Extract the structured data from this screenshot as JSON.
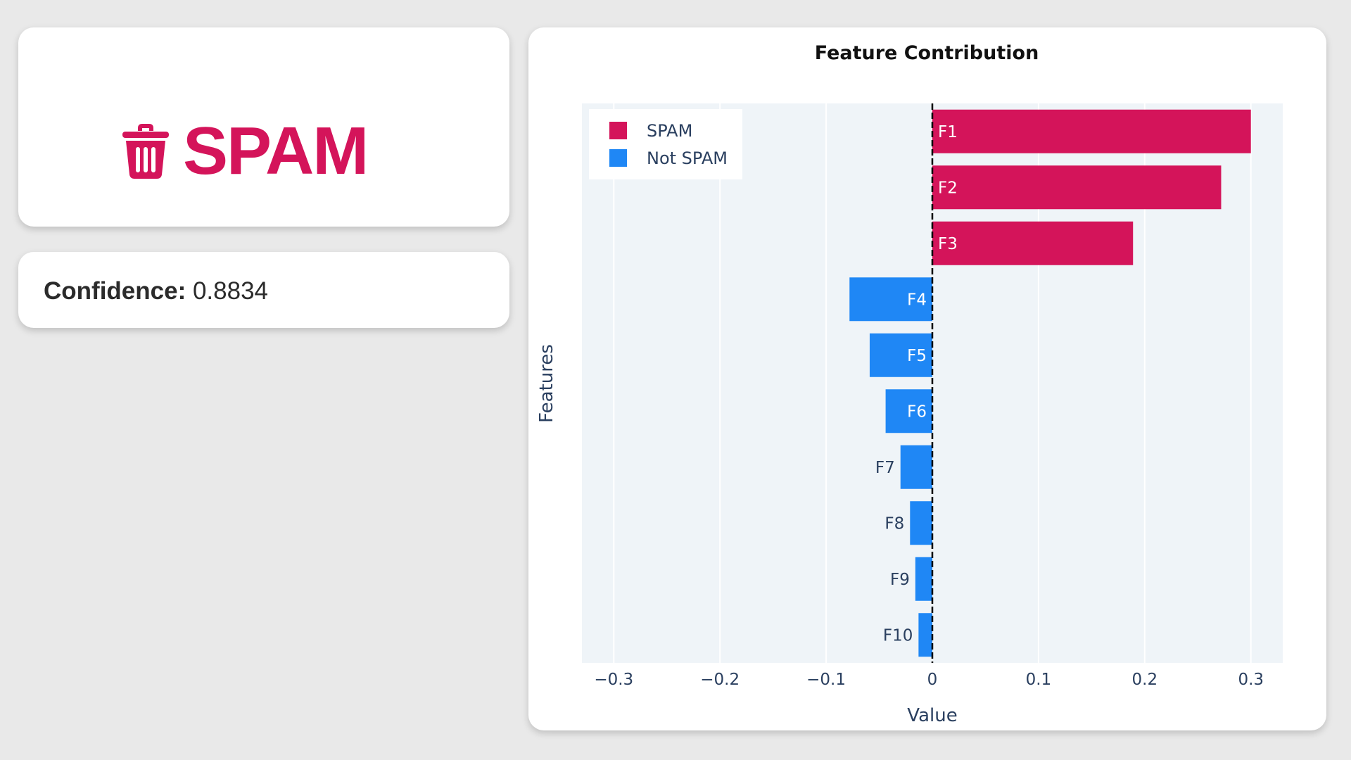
{
  "result": {
    "label": "SPAM",
    "icon": "trash-icon",
    "color": "#d4145a"
  },
  "confidence": {
    "label": "Confidence:",
    "value": "0.8834"
  },
  "colors": {
    "spam": "#d4145a",
    "not_spam": "#1f87f5",
    "plot_background": "#eff4f8",
    "zero_line": "#000000"
  },
  "chart_data": {
    "type": "bar",
    "orientation": "horizontal",
    "title": "Feature Contribution",
    "xlabel": "Value",
    "ylabel": "Features",
    "xlim": [
      -0.33,
      0.33
    ],
    "x_ticks": [
      "−0.3",
      "−0.2",
      "−0.1",
      "0",
      "0.1",
      "0.2",
      "0.3"
    ],
    "x_tick_values": [
      -0.3,
      -0.2,
      -0.1,
      0,
      0.1,
      0.2,
      0.3
    ],
    "grid": true,
    "legend_position": "top-left",
    "categories": [
      "F1",
      "F2",
      "F3",
      "F4",
      "F5",
      "F6",
      "F7",
      "F8",
      "F9",
      "F10"
    ],
    "values": [
      0.3,
      0.272,
      0.189,
      -0.078,
      -0.059,
      -0.044,
      -0.03,
      -0.021,
      -0.016,
      -0.013
    ],
    "series": [
      {
        "name": "SPAM",
        "color": "#d4145a"
      },
      {
        "name": "Not SPAM",
        "color": "#1f87f5"
      }
    ]
  }
}
